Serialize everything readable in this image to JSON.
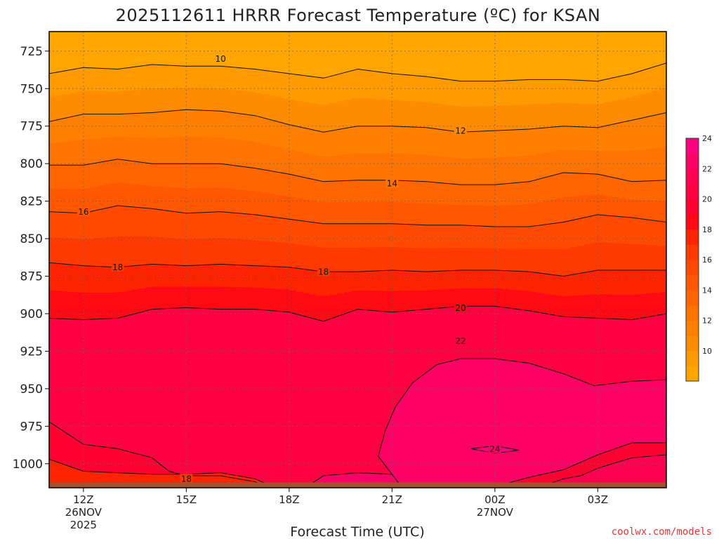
{
  "chart_data": {
    "type": "heatmap",
    "title": "2025112611 HRRR Forecast Temperature (ºC) for KSAN",
    "xlabel": "Forecast Time (UTC)",
    "ylabel": "",
    "credit": "coolwx.com/models",
    "x_ticks": [
      {
        "hours": 1,
        "lines": [
          "12Z",
          "26NOV",
          "2025"
        ]
      },
      {
        "hours": 4,
        "lines": [
          "15Z"
        ]
      },
      {
        "hours": 7,
        "lines": [
          "18Z"
        ]
      },
      {
        "hours": 10,
        "lines": [
          "21Z"
        ]
      },
      {
        "hours": 13,
        "lines": [
          "00Z",
          "27NOV"
        ]
      },
      {
        "hours": 16,
        "lines": [
          "03Z"
        ]
      }
    ],
    "x_range_hours": [
      0,
      18
    ],
    "y_ticks": [
      725,
      750,
      775,
      800,
      825,
      850,
      875,
      900,
      925,
      950,
      975,
      1000
    ],
    "y_range_hpa": [
      712,
      1016
    ],
    "surface_pressure_hpa": 1012,
    "grid": true,
    "levels": [
      10,
      12,
      14,
      16,
      18,
      20,
      22,
      24
    ],
    "colorbar": {
      "boundaries": [
        8,
        10,
        11,
        12,
        13,
        14,
        15,
        16,
        17,
        18,
        19,
        20,
        21,
        22,
        23,
        24,
        26
      ],
      "colors": [
        "#ffa500",
        "#ff9a00",
        "#ff8c00",
        "#ff8000",
        "#ff7300",
        "#ff6600",
        "#ff5800",
        "#ff4a00",
        "#ff3a00",
        "#ff2400",
        "#ff0a14",
        "#ff0030",
        "#ff0040",
        "#ff0050",
        "#ff0064",
        "#ff0080"
      ],
      "tick_labels": [
        10,
        12,
        14,
        16,
        18,
        20,
        22,
        24
      ]
    },
    "contour_labels": [
      {
        "text": "10",
        "h": 5.0,
        "p": 730
      },
      {
        "text": "12",
        "h": 12.0,
        "p": 778
      },
      {
        "text": "14",
        "h": 10.0,
        "p": 813
      },
      {
        "text": "16",
        "h": 1.0,
        "p": 832
      },
      {
        "text": "18",
        "h": 2.0,
        "p": 869
      },
      {
        "text": "18",
        "h": 8.0,
        "p": 872
      },
      {
        "text": "20",
        "h": 12.0,
        "p": 896
      },
      {
        "text": "22",
        "h": 12.0,
        "p": 918
      },
      {
        "text": "24",
        "h": 13.0,
        "p": 990
      },
      {
        "text": "18",
        "h": 4.0,
        "p": 1010
      }
    ],
    "contours": [
      {
        "level": 10,
        "points": [
          [
            0,
            740
          ],
          [
            1,
            736
          ],
          [
            2,
            737
          ],
          [
            3,
            734
          ],
          [
            4,
            735
          ],
          [
            5,
            735
          ],
          [
            6,
            737
          ],
          [
            7,
            740
          ],
          [
            8,
            743
          ],
          [
            9,
            737
          ],
          [
            10,
            740
          ],
          [
            11,
            742
          ],
          [
            12,
            745
          ],
          [
            13,
            745
          ],
          [
            14,
            744
          ],
          [
            15,
            744
          ],
          [
            16,
            745
          ],
          [
            17,
            740
          ],
          [
            18,
            733
          ]
        ]
      },
      {
        "level": 12,
        "points": [
          [
            0,
            772
          ],
          [
            1,
            767
          ],
          [
            2,
            767
          ],
          [
            3,
            766
          ],
          [
            4,
            764
          ],
          [
            5,
            765
          ],
          [
            6,
            768
          ],
          [
            7,
            774
          ],
          [
            8,
            779
          ],
          [
            9,
            775
          ],
          [
            10,
            775
          ],
          [
            11,
            776
          ],
          [
            12,
            779
          ],
          [
            13,
            778
          ],
          [
            14,
            777
          ],
          [
            15,
            775
          ],
          [
            16,
            776
          ],
          [
            17,
            771
          ],
          [
            18,
            766
          ]
        ]
      },
      {
        "level": 14,
        "points": [
          [
            0,
            801
          ],
          [
            1,
            801
          ],
          [
            2,
            797
          ],
          [
            3,
            800
          ],
          [
            4,
            800
          ],
          [
            5,
            800
          ],
          [
            6,
            803
          ],
          [
            7,
            807
          ],
          [
            8,
            812
          ],
          [
            9,
            811
          ],
          [
            10,
            811
          ],
          [
            11,
            812
          ],
          [
            12,
            814
          ],
          [
            13,
            814
          ],
          [
            14,
            812
          ],
          [
            15,
            806
          ],
          [
            16,
            807
          ],
          [
            17,
            812
          ],
          [
            18,
            811
          ]
        ]
      },
      {
        "level": 16,
        "points": [
          [
            0,
            832
          ],
          [
            1,
            833
          ],
          [
            2,
            828
          ],
          [
            3,
            830
          ],
          [
            4,
            833
          ],
          [
            5,
            832
          ],
          [
            6,
            834
          ],
          [
            7,
            837
          ],
          [
            8,
            840
          ],
          [
            9,
            840
          ],
          [
            10,
            840
          ],
          [
            11,
            841
          ],
          [
            12,
            841
          ],
          [
            13,
            842
          ],
          [
            14,
            842
          ],
          [
            15,
            839
          ],
          [
            16,
            834
          ],
          [
            17,
            836
          ],
          [
            18,
            839
          ]
        ]
      },
      {
        "level": 18,
        "points": [
          [
            0,
            866
          ],
          [
            1,
            868
          ],
          [
            2,
            869
          ],
          [
            3,
            867
          ],
          [
            4,
            868
          ],
          [
            5,
            867
          ],
          [
            6,
            868
          ],
          [
            7,
            869
          ],
          [
            8,
            872
          ],
          [
            9,
            872
          ],
          [
            10,
            871
          ],
          [
            11,
            872
          ],
          [
            12,
            871
          ],
          [
            13,
            871
          ],
          [
            14,
            872
          ],
          [
            15,
            875
          ],
          [
            16,
            871
          ],
          [
            17,
            871
          ],
          [
            18,
            871
          ]
        ]
      },
      {
        "level": 20,
        "points": [
          [
            0,
            903
          ],
          [
            1,
            904
          ],
          [
            2,
            903
          ],
          [
            3,
            897
          ],
          [
            4,
            896
          ],
          [
            5,
            897
          ],
          [
            6,
            897
          ],
          [
            7,
            899
          ],
          [
            8,
            905
          ],
          [
            9,
            897
          ],
          [
            10,
            899
          ],
          [
            11,
            897
          ],
          [
            12,
            895
          ],
          [
            13,
            895
          ],
          [
            14,
            898
          ],
          [
            15,
            902
          ],
          [
            16,
            903
          ],
          [
            17,
            904
          ],
          [
            18,
            900
          ]
        ]
      },
      {
        "level": 22,
        "points": [
          [
            10,
            1007
          ],
          [
            9.6,
            995
          ],
          [
            9.8,
            978
          ],
          [
            10.1,
            962
          ],
          [
            10.6,
            946
          ],
          [
            11.3,
            934
          ],
          [
            12,
            930
          ],
          [
            13,
            930
          ],
          [
            14,
            933
          ],
          [
            15,
            940
          ],
          [
            15.9,
            948
          ],
          [
            17,
            945
          ],
          [
            18,
            944
          ]
        ]
      },
      {
        "level": 24,
        "points": [
          [
            12.3,
            990
          ],
          [
            13,
            988
          ],
          [
            13.7,
            991
          ],
          [
            13,
            993
          ],
          [
            12.3,
            990
          ]
        ]
      },
      {
        "level": 18,
        "points": [
          [
            0,
            997
          ],
          [
            1,
            1005
          ],
          [
            2,
            1006
          ],
          [
            3,
            1007
          ],
          [
            4,
            1007
          ],
          [
            5,
            1006
          ],
          [
            6,
            1010
          ],
          [
            6.4,
            1014
          ]
        ]
      },
      {
        "level": 20,
        "points": [
          [
            0,
            972
          ],
          [
            1,
            987
          ],
          [
            2,
            990
          ],
          [
            3,
            996
          ],
          [
            3.5,
            1005
          ],
          [
            4,
            1008
          ],
          [
            5,
            1008
          ],
          [
            6,
            1012
          ],
          [
            6.2,
            1014
          ]
        ]
      },
      {
        "level": 20,
        "points": [
          [
            13.2,
            1014
          ],
          [
            14,
            1009
          ],
          [
            15,
            1004
          ],
          [
            16,
            994
          ],
          [
            17,
            986
          ],
          [
            18,
            986
          ]
        ]
      },
      {
        "level": 22,
        "points": [
          [
            14.5,
            1014
          ],
          [
            15,
            1010
          ],
          [
            15.5,
            1008
          ],
          [
            16,
            1003
          ],
          [
            17,
            996
          ],
          [
            18,
            994
          ]
        ]
      },
      {
        "level": 22,
        "points": [
          [
            7.6,
            1014
          ],
          [
            8,
            1008
          ],
          [
            9,
            1006
          ],
          [
            10,
            1007
          ],
          [
            10.2,
            1013
          ]
        ]
      }
    ]
  }
}
